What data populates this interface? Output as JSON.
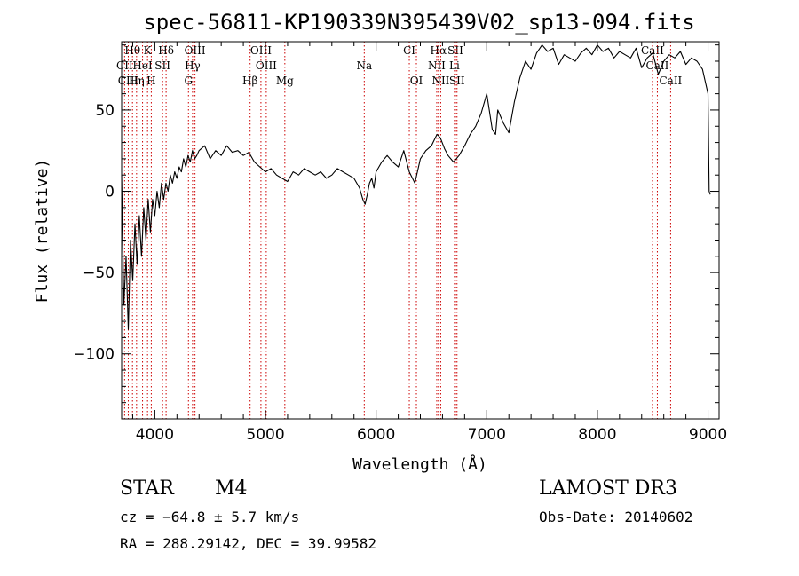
{
  "chart_data": {
    "type": "line",
    "title": "spec-56811-KP190339N395439V02_sp13-094.fits",
    "xlabel": "Wavelength (Å)",
    "ylabel": "Flux (relative)",
    "xlim": [
      3700,
      9100
    ],
    "ylim": [
      -140,
      92
    ],
    "xticks": [
      4000,
      5000,
      6000,
      7000,
      8000,
      9000
    ],
    "yticks": [
      -100,
      -50,
      0,
      50
    ],
    "line_color": "#000000",
    "marker_color": "#cc0000",
    "series": [
      {
        "x": [
          3700,
          3720,
          3740,
          3760,
          3780,
          3800,
          3820,
          3840,
          3860,
          3880,
          3900,
          3920,
          3940,
          3960,
          3980,
          4000,
          4020,
          4040,
          4060,
          4080,
          4100,
          4120,
          4140,
          4160,
          4180,
          4200,
          4220,
          4240,
          4260,
          4280,
          4300,
          4320,
          4340,
          4360,
          4380,
          4400,
          4450,
          4500,
          4550,
          4600,
          4650,
          4700,
          4750,
          4800,
          4850,
          4900,
          4950,
          5000,
          5050,
          5100,
          5150,
          5200,
          5250,
          5300,
          5350,
          5400,
          5450,
          5500,
          5550,
          5600,
          5650,
          5700,
          5750,
          5800,
          5850,
          5880,
          5900,
          5920,
          5940,
          5960,
          5980,
          6000,
          6050,
          6100,
          6150,
          6200,
          6250,
          6300,
          6350,
          6400,
          6450,
          6500,
          6550,
          6580,
          6620,
          6650,
          6700,
          6750,
          6800,
          6850,
          6900,
          6950,
          7000,
          7050,
          7080,
          7100,
          7150,
          7200,
          7250,
          7300,
          7350,
          7400,
          7450,
          7500,
          7550,
          7600,
          7650,
          7700,
          7750,
          7800,
          7850,
          7900,
          7950,
          8000,
          8050,
          8100,
          8150,
          8200,
          8250,
          8300,
          8350,
          8400,
          8450,
          8500,
          8550,
          8600,
          8650,
          8700,
          8750,
          8800,
          8850,
          8900,
          8950,
          9000,
          9010,
          9020
        ],
        "y": [
          10,
          -70,
          -40,
          -85,
          -30,
          -55,
          -20,
          -45,
          -15,
          -40,
          -10,
          -30,
          -5,
          -25,
          -5,
          -15,
          0,
          -10,
          5,
          -5,
          5,
          0,
          10,
          5,
          12,
          8,
          15,
          12,
          20,
          15,
          22,
          18,
          25,
          20,
          22,
          25,
          28,
          20,
          25,
          22,
          28,
          24,
          25,
          22,
          24,
          18,
          15,
          12,
          14,
          10,
          8,
          6,
          12,
          10,
          14,
          12,
          10,
          12,
          8,
          10,
          14,
          12,
          10,
          8,
          2,
          -5,
          -8,
          -2,
          5,
          8,
          2,
          12,
          18,
          22,
          18,
          15,
          25,
          12,
          5,
          20,
          25,
          28,
          35,
          33,
          26,
          22,
          18,
          22,
          28,
          35,
          40,
          48,
          60,
          38,
          35,
          50,
          42,
          36,
          55,
          70,
          80,
          75,
          85,
          90,
          86,
          88,
          78,
          84,
          82,
          80,
          85,
          88,
          84,
          90,
          86,
          88,
          82,
          86,
          84,
          82,
          88,
          76,
          82,
          85,
          72,
          80,
          84,
          82,
          86,
          78,
          82,
          80,
          75,
          60,
          0,
          -2
        ]
      }
    ],
    "spectral_lines": [
      {
        "label": "Hθ",
        "x": 3798,
        "row": 0
      },
      {
        "label": "K",
        "x": 3934,
        "row": 0
      },
      {
        "label": "Hδ",
        "x": 4102,
        "row": 0
      },
      {
        "label": "OIII",
        "x": 4363,
        "row": 0
      },
      {
        "label": "OIII",
        "x": 4959,
        "row": 0
      },
      {
        "label": "CI",
        "x": 6300,
        "row": 0
      },
      {
        "label": "Hα",
        "x": 6563,
        "row": 0
      },
      {
        "label": "SII",
        "x": 6717,
        "row": 0
      },
      {
        "label": "CaII",
        "x": 8498,
        "row": 0
      },
      {
        "label": "CII",
        "x": 3727,
        "row": 1
      },
      {
        "label": "HeI",
        "x": 3889,
        "row": 1
      },
      {
        "label": "SII",
        "x": 4070,
        "row": 1
      },
      {
        "label": "Hγ",
        "x": 4341,
        "row": 1
      },
      {
        "label": "OIII",
        "x": 5007,
        "row": 1
      },
      {
        "label": "Na",
        "x": 5893,
        "row": 1
      },
      {
        "label": "NII",
        "x": 6548,
        "row": 1
      },
      {
        "label": "Li",
        "x": 6708,
        "row": 1
      },
      {
        "label": "CaII",
        "x": 8542,
        "row": 1
      },
      {
        "label": "CIII",
        "x": 3760,
        "row": 2
      },
      {
        "label": "Hη",
        "x": 3835,
        "row": 2
      },
      {
        "label": "H",
        "x": 3968,
        "row": 2
      },
      {
        "label": "G",
        "x": 4304,
        "row": 2
      },
      {
        "label": "Hβ",
        "x": 4861,
        "row": 2
      },
      {
        "label": "Mg",
        "x": 5175,
        "row": 2
      },
      {
        "label": "OI",
        "x": 6364,
        "row": 2
      },
      {
        "label": "NII",
        "x": 6584,
        "row": 2
      },
      {
        "label": "SII",
        "x": 6731,
        "row": 2
      },
      {
        "label": "CaII",
        "x": 8662,
        "row": 2
      }
    ]
  },
  "info": {
    "object_class": "STAR",
    "subclass": "M4",
    "survey": "LAMOST DR3",
    "cz": "cz = −64.8 ± 5.7 km/s",
    "obs_date": "Obs-Date: 20140602",
    "coords": "RA = 288.29142, DEC =  39.99582"
  }
}
